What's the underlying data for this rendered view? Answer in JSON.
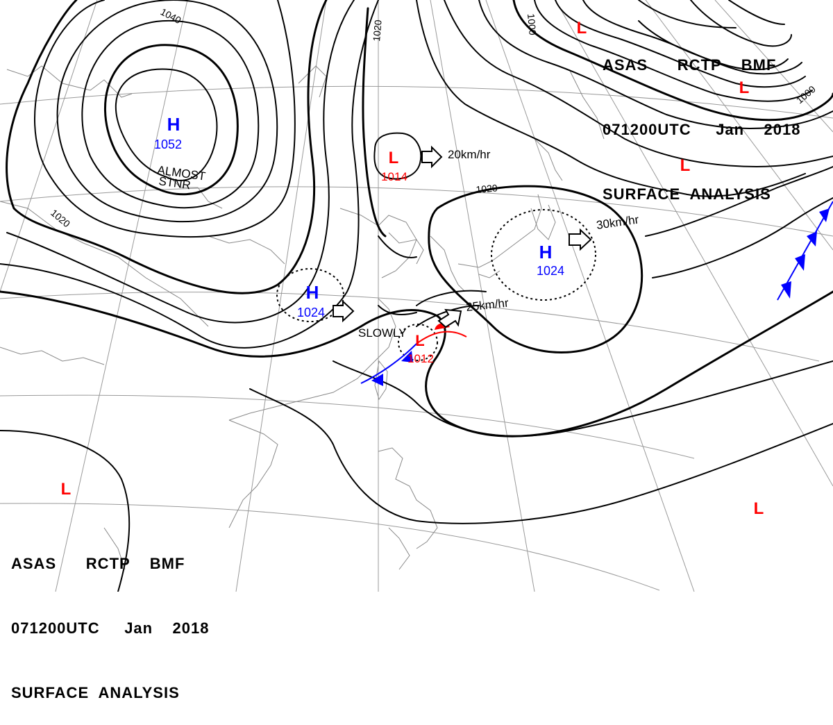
{
  "header_top_right": {
    "line1": "ASAS      RCTP    BMF",
    "line2": "071200UTC     Jan    2018",
    "line3": "SURFACE  ANALYSIS"
  },
  "header_bottom_left": {
    "line1": "ASAS      RCTP    BMF",
    "line2": "071200UTC     Jan    2018",
    "line3": "SURFACE  ANALYSIS"
  },
  "pressure_centers": [
    {
      "symbol": "H",
      "value": "1052",
      "color": "#0000ff"
    },
    {
      "symbol": "H",
      "value": "1024",
      "color": "#0000ff"
    },
    {
      "symbol": "H",
      "value": "1024",
      "color": "#0000ff"
    },
    {
      "symbol": "L",
      "value": "1014",
      "color": "#ff0000"
    },
    {
      "symbol": "L",
      "value": "1012",
      "color": "#ff0000"
    },
    {
      "symbol": "L",
      "value": "",
      "color": "#ff0000"
    }
  ],
  "isobar_labels": [
    "1040",
    "1020",
    "1020",
    "1020",
    "1000",
    "1000"
  ],
  "motion_labels": {
    "almost": "ALMOST",
    "stnr": "STNR",
    "low_north": "20km/hr",
    "high_east": "30km/hr",
    "low_taiwan": "25km/hr",
    "high_china": "SLOWLY"
  },
  "colors": {
    "isobar": "#000000",
    "graticule": "#999999",
    "coastline": "#888888",
    "high": "#0000ff",
    "low": "#ff0000",
    "cold_front": "#0000ff",
    "warm_front": "#ff0000"
  }
}
